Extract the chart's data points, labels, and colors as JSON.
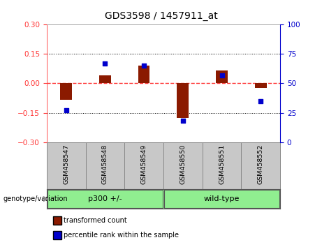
{
  "title": "GDS3598 / 1457911_at",
  "samples": [
    "GSM458547",
    "GSM458548",
    "GSM458549",
    "GSM458550",
    "GSM458551",
    "GSM458552"
  ],
  "transformed_counts": [
    -0.085,
    0.04,
    0.09,
    -0.175,
    0.065,
    -0.025
  ],
  "percentile_ranks": [
    27,
    67,
    65,
    18,
    57,
    35
  ],
  "group_label": "genotype/variation",
  "group_p300_label": "p300 +/-",
  "group_wt_label": "wild-type",
  "ylim_left": [
    -0.3,
    0.3
  ],
  "ylim_right": [
    0,
    100
  ],
  "yticks_left": [
    -0.3,
    -0.15,
    0,
    0.15,
    0.3
  ],
  "yticks_right": [
    0,
    25,
    50,
    75,
    100
  ],
  "bar_color": "#8B1A00",
  "dot_color": "#0000CC",
  "hline_color": "#FF3333",
  "grid_color": "#000000",
  "plot_bg": "#FFFFFF",
  "label_bg": "#C8C8C8",
  "group_bg": "#90EE90",
  "tick_color_left": "#FF3333",
  "tick_color_right": "#0000CC",
  "legend_bar_label": "transformed count",
  "legend_dot_label": "percentile rank within the sample"
}
